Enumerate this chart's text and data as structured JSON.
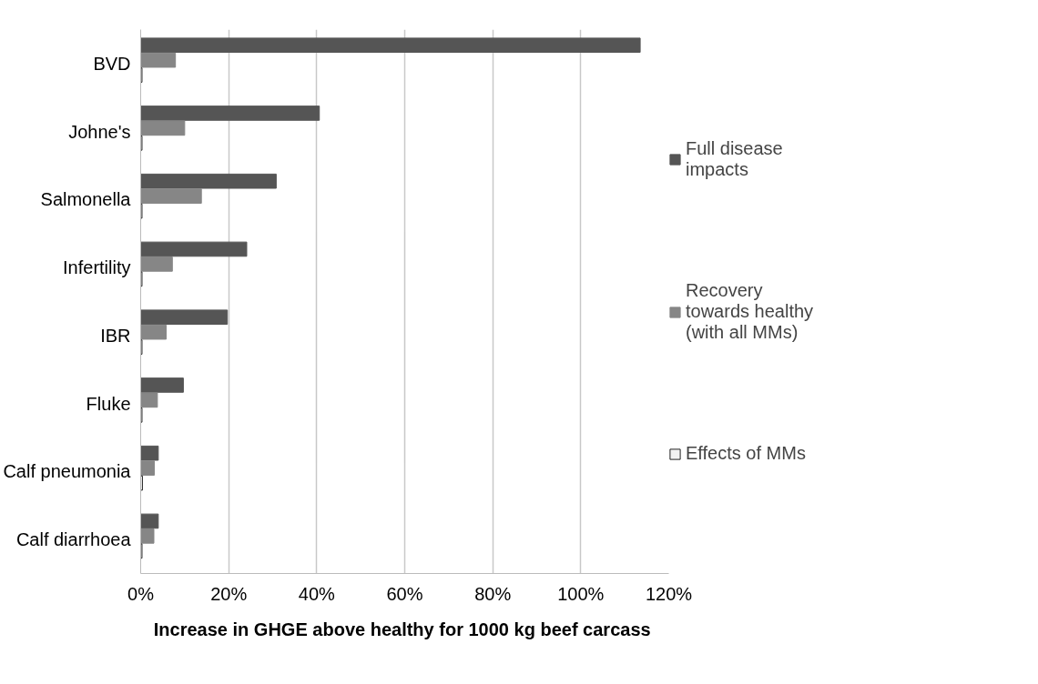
{
  "chart_data": {
    "type": "bar",
    "orientation": "horizontal",
    "xlabel": "Increase in GHGE above healthy for 1000 kg  beef carcass",
    "categories": [
      "BVD",
      "Johne's",
      "Salmonella",
      "Infertility",
      "IBR",
      "Fluke",
      "Calf pneumonia",
      "Calf diarrhoea"
    ],
    "series": [
      {
        "name": "Full disease impacts",
        "color": "#555555",
        "values": [
          113.5,
          40.6,
          30.8,
          24.1,
          19.7,
          9.7,
          4.0,
          4.0
        ]
      },
      {
        "name": "Recovery towards healthy (with all MMs)",
        "color": "#868686",
        "values": [
          7.9,
          10.0,
          13.8,
          7.2,
          5.8,
          3.8,
          3.1,
          3.0
        ]
      },
      {
        "name": "Effects of MMs",
        "color": "#f2f2f2",
        "values": [
          0.3,
          0.3,
          0.3,
          0.3,
          0.3,
          0.3,
          0.4,
          0.3
        ]
      }
    ],
    "xlim": [
      0,
      120
    ],
    "xticks": [
      {
        "value": 0,
        "label": "0%"
      },
      {
        "value": 20,
        "label": "20%"
      },
      {
        "value": 40,
        "label": "40%"
      },
      {
        "value": 60,
        "label": "60%"
      },
      {
        "value": 80,
        "label": "80%"
      },
      {
        "value": 100,
        "label": "100%"
      },
      {
        "value": 120,
        "label": "120%"
      }
    ],
    "grid": "x",
    "legend": "right"
  }
}
